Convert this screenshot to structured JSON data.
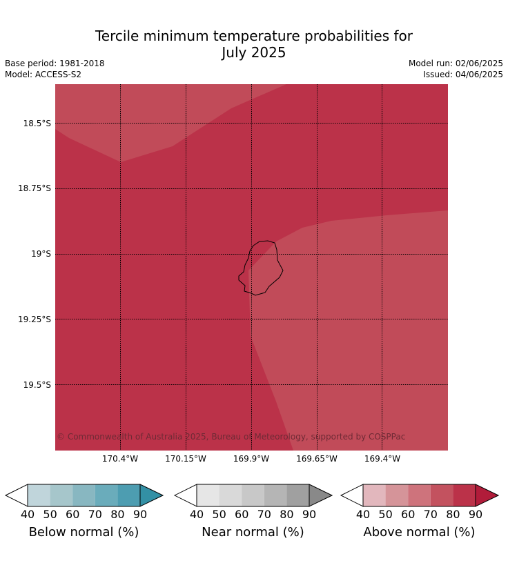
{
  "title": {
    "line1": "Tercile minimum temperature probabilities for",
    "line2": "July 2025"
  },
  "meta": {
    "base_period": "Base period: 1981-2018",
    "model": "Model: ACCESS-S2",
    "model_run": "Model run: 02/06/2025",
    "issued": "Issued: 04/06/2025"
  },
  "map": {
    "y_ticks": [
      "18.5°S",
      "18.75°S",
      "19°S",
      "19.25°S",
      "19.5°S"
    ],
    "x_ticks": [
      "170.4°W",
      "170.15°W",
      "169.9°W",
      "169.65°W",
      "169.4°W"
    ],
    "copyright": "© Commonwealth of Australia 2025, Bureau of Meteorology, supported by COSPPac",
    "colors": {
      "above_80_90": "#bb3249",
      "above_70_80": "#c14b59"
    }
  },
  "colorbars": [
    {
      "label": "Below normal (%)",
      "ticks": [
        "40",
        "50",
        "60",
        "70",
        "80",
        "90"
      ],
      "colors": [
        "#c0d5db",
        "#a6c6cb",
        "#88b7c1",
        "#6aacbb",
        "#4d9db1",
        "#3390a5"
      ]
    },
    {
      "label": "Near normal (%)",
      "ticks": [
        "40",
        "50",
        "60",
        "70",
        "80",
        "90"
      ],
      "colors": [
        "#e6e6e6",
        "#d9d9d9",
        "#c8c8c8",
        "#b5b5b5",
        "#a0a0a0",
        "#898989"
      ]
    },
    {
      "label": "Above normal (%)",
      "ticks": [
        "40",
        "50",
        "60",
        "70",
        "80",
        "90"
      ],
      "colors": [
        "#e2b7bd",
        "#d59499",
        "#ce737c",
        "#c3525f",
        "#bb3249",
        "#b11c3a"
      ]
    }
  ]
}
